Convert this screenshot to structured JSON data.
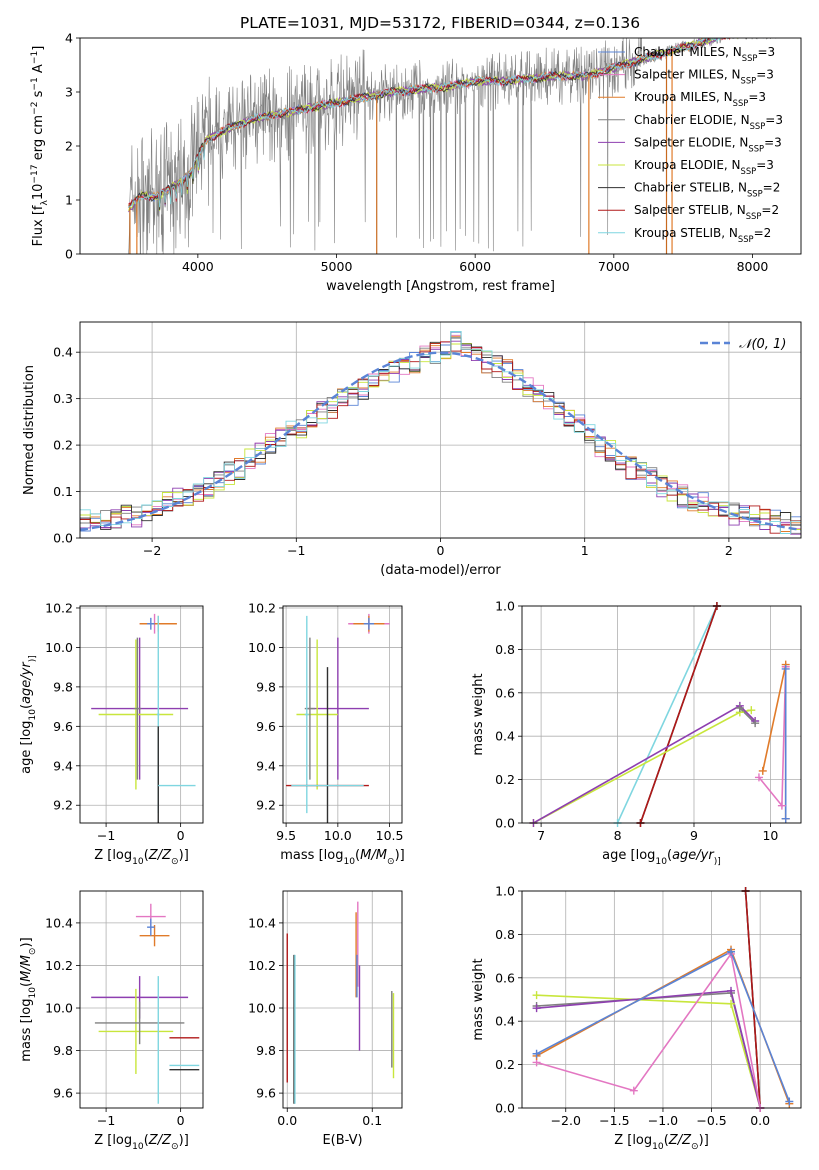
{
  "figure_title": "PLATE=1031, MJD=53172, FIBERID=0344, z=0.136",
  "model_colors": {
    "Chabrier MILES": "#5a84d6",
    "Salpeter MILES": "#e377c2",
    "Kroupa MILES": "#e07b2a",
    "Chabrier ELODIE": "#808080",
    "Salpeter ELODIE": "#8e3fb0",
    "Kroupa ELODIE": "#c8e63c",
    "Chabrier STELIB": "#303030",
    "Salpeter STELIB": "#b01818",
    "Kroupa STELIB": "#7fd6e0"
  },
  "chart_data": [
    {
      "id": "spectrum",
      "type": "line",
      "xlabel": "wavelength [Angstrom, rest frame]",
      "xlim": [
        3150,
        8350
      ],
      "ylim": [
        0,
        4
      ],
      "xticks": [
        4000,
        5000,
        6000,
        7000,
        8000
      ],
      "yticks": [
        0,
        1,
        2,
        3,
        4
      ],
      "ylabel_parts": [
        "Flux [f",
        "λ",
        "10",
        "−17",
        " erg cm",
        "−2",
        " s",
        "−1",
        " A",
        "−1",
        "]"
      ],
      "legend_position": "upper right",
      "continuum": {
        "x": [
          3500,
          3600,
          3700,
          3850,
          3950,
          4050,
          4200,
          4400,
          4600,
          4800,
          5000,
          5200,
          5400,
          5600,
          5800,
          6000,
          6200,
          6400,
          6600,
          6800,
          7000,
          7200,
          7400,
          7600,
          7800,
          8000,
          8200
        ],
        "y": [
          0.85,
          1.1,
          1.05,
          1.3,
          1.5,
          2.1,
          2.3,
          2.5,
          2.6,
          2.7,
          2.8,
          2.9,
          3.0,
          3.05,
          3.1,
          3.2,
          3.2,
          3.25,
          3.3,
          3.3,
          3.45,
          3.6,
          3.75,
          3.9,
          4.05,
          4.1,
          4.1
        ]
      },
      "observed_noisy_x_range": [
        3500,
        7200
      ],
      "drops_to_zero": [
        3510,
        3560,
        5290,
        6820,
        7380,
        7420
      ],
      "series": [
        {
          "name_parts": [
            "Chabrier MILES, N",
            "SSP",
            "=3"
          ],
          "color": "#5a84d6"
        },
        {
          "name_parts": [
            "Salpeter MILES, N",
            "SSP",
            "=3"
          ],
          "color": "#e377c2"
        },
        {
          "name_parts": [
            "Kroupa MILES, N",
            "SSP",
            "=3"
          ],
          "color": "#e07b2a"
        },
        {
          "name_parts": [
            "Chabrier ELODIE, N",
            "SSP",
            "=3"
          ],
          "color": "#808080"
        },
        {
          "name_parts": [
            "Salpeter ELODIE, N",
            "SSP",
            "=3"
          ],
          "color": "#8e3fb0"
        },
        {
          "name_parts": [
            "Kroupa ELODIE, N",
            "SSP",
            "=3"
          ],
          "color": "#c8e63c"
        },
        {
          "name_parts": [
            "Chabrier STELIB, N",
            "SSP",
            "=2"
          ],
          "color": "#303030"
        },
        {
          "name_parts": [
            "Salpeter STELIB, N",
            "SSP",
            "=2"
          ],
          "color": "#b01818"
        },
        {
          "name_parts": [
            "Kroupa STELIB, N",
            "SSP",
            "=2"
          ],
          "color": "#7fd6e0"
        }
      ]
    },
    {
      "id": "residuals",
      "type": "line",
      "xlabel": "(data-model)/error",
      "ylabel": "Normed distribution",
      "xlim": [
        -2.5,
        2.5
      ],
      "ylim": [
        0,
        0.465
      ],
      "xticks": [
        -2,
        -1,
        0,
        1,
        2
      ],
      "xticklabels": [
        "−2",
        "−1",
        "0",
        "1",
        "2"
      ],
      "yticks": [
        0,
        0.1,
        0.2,
        0.3,
        0.4
      ],
      "yticklabels": [
        "0.0",
        "0.1",
        "0.2",
        "0.3",
        "0.4"
      ],
      "grid": true,
      "gaussian": {
        "name": "𝒩(0, 1)",
        "color": "#5a84d6",
        "mean": 0,
        "sigma": 1
      },
      "histogram_bin_width": 0.1,
      "histogram_base": [
        0.04,
        0.045,
        0.042,
        0.045,
        0.05,
        0.048,
        0.055,
        0.065,
        0.075,
        0.085,
        0.09,
        0.1,
        0.11,
        0.125,
        0.14,
        0.15,
        0.17,
        0.18,
        0.2,
        0.22,
        0.23,
        0.24,
        0.25,
        0.27,
        0.28,
        0.3,
        0.31,
        0.32,
        0.33,
        0.35,
        0.36,
        0.37,
        0.38,
        0.39,
        0.4,
        0.41,
        0.42,
        0.4,
        0.39,
        0.38,
        0.37,
        0.36,
        0.34,
        0.33,
        0.31,
        0.29,
        0.27,
        0.25,
        0.24,
        0.22,
        0.2,
        0.19,
        0.17,
        0.15,
        0.14,
        0.13,
        0.11,
        0.1,
        0.09,
        0.08,
        0.075,
        0.065,
        0.058,
        0.052,
        0.048,
        0.045,
        0.04,
        0.035,
        0.032,
        0.03
      ]
    },
    {
      "id": "age-vs-Z",
      "type": "scatter",
      "xlabel_parts": [
        "Z [log",
        "10",
        "(",
        "Z/Z",
        "⊙",
        ")]"
      ],
      "ylabel_parts": [
        "age  [log",
        "10",
        "(",
        "age/yr",
        ")]"
      ],
      "xlim": [
        -1.35,
        0.3
      ],
      "ylim": [
        9.11,
        10.21
      ],
      "xticks": [
        -1,
        0
      ],
      "xticklabels": [
        "−1",
        "0"
      ],
      "yticks": [
        9.2,
        9.4,
        9.6,
        9.8,
        10.0,
        10.2
      ],
      "yticklabels": [
        "9.2",
        "9.4",
        "9.6",
        "9.8",
        "10.0",
        "10.2"
      ],
      "grid": true,
      "points": [
        {
          "x": -0.35,
          "y": 10.12,
          "xerr": 0.2,
          "yerr": 0.05,
          "color": "#e377c2"
        },
        {
          "x": -0.3,
          "y": 10.12,
          "xerr": 0.25,
          "yerr": 0.04,
          "color": "#e07b2a"
        },
        {
          "x": -0.4,
          "y": 10.12,
          "xerr": 0.05,
          "yerr": 0.03,
          "color": "#5a84d6"
        },
        {
          "x": -0.55,
          "y": 9.69,
          "xerr": 0.65,
          "yerr": 0.36,
          "color": "#8e3fb0"
        },
        {
          "x": -0.6,
          "y": 9.66,
          "xerr": 0.5,
          "yerr": 0.38,
          "color": "#c8e63c"
        },
        {
          "x": -0.58,
          "y": 9.69,
          "xerr": 0.05,
          "yerr": 0.36,
          "color": "#808080"
        },
        {
          "x": -0.3,
          "y": 9.66,
          "xerr": 0.02,
          "yerr": 0.5,
          "color": "#7fd6e0"
        },
        {
          "x": -0.3,
          "y": 9.3,
          "xerr": 0.0,
          "yerr": 0.3,
          "color": "#303030"
        },
        {
          "x": -0.05,
          "y": 9.3,
          "xerr": 0.25,
          "yerr": 0.0,
          "color": "#7fd6e0"
        }
      ]
    },
    {
      "id": "age-vs-mass",
      "type": "scatter",
      "xlabel_parts": [
        "mass [log",
        "10",
        "(",
        "M/M",
        "⊙",
        ")]"
      ],
      "xlim": [
        9.47,
        10.62
      ],
      "ylim": [
        9.11,
        10.21
      ],
      "xticks": [
        9.5,
        10.0,
        10.5
      ],
      "xticklabels": [
        "9.5",
        "10.0",
        "10.5"
      ],
      "yticks": [
        9.2,
        9.4,
        9.6,
        9.8,
        10.0,
        10.2
      ],
      "yticklabels": [
        "9.2",
        "9.4",
        "9.6",
        "9.8",
        "10.0",
        "10.2"
      ],
      "grid": true,
      "points": [
        {
          "x": 10.3,
          "y": 10.12,
          "xerr": 0.2,
          "yerr": 0.05,
          "color": "#e377c2"
        },
        {
          "x": 10.3,
          "y": 10.12,
          "xerr": 0.15,
          "yerr": 0.04,
          "color": "#e07b2a"
        },
        {
          "x": 10.3,
          "y": 10.12,
          "xerr": 0.05,
          "yerr": 0.03,
          "color": "#5a84d6"
        },
        {
          "x": 10.0,
          "y": 9.69,
          "xerr": 0.3,
          "yerr": 0.36,
          "color": "#8e3fb0"
        },
        {
          "x": 9.8,
          "y": 9.66,
          "xerr": 0.2,
          "yerr": 0.38,
          "color": "#c8e63c"
        },
        {
          "x": 9.73,
          "y": 9.69,
          "xerr": 0.05,
          "yerr": 0.36,
          "color": "#808080"
        },
        {
          "x": 9.7,
          "y": 9.66,
          "xerr": 0.02,
          "yerr": 0.5,
          "color": "#7fd6e0"
        },
        {
          "x": 9.9,
          "y": 9.3,
          "xerr": 0.4,
          "yerr": 0.0,
          "color": "#b01818"
        },
        {
          "x": 9.9,
          "y": 9.45,
          "xerr": 0.0,
          "yerr": 0.45,
          "color": "#303030"
        },
        {
          "x": 9.9,
          "y": 9.3,
          "xerr": 0.35,
          "yerr": 0.0,
          "color": "#7fd6e0"
        }
      ]
    },
    {
      "id": "weight-vs-age",
      "type": "line",
      "xlabel_parts": [
        "age  [log",
        "10",
        "(",
        "age/yr",
        ")]"
      ],
      "ylabel": "mass weight",
      "xlim": [
        6.75,
        10.4
      ],
      "ylim": [
        0,
        1
      ],
      "xticks": [
        7,
        8,
        9,
        10
      ],
      "xticklabels": [
        "7",
        "8",
        "9",
        "10"
      ],
      "yticks": [
        0,
        0.2,
        0.4,
        0.6,
        0.8,
        1.0
      ],
      "yticklabels": [
        "0.0",
        "0.2",
        "0.4",
        "0.6",
        "0.8",
        "1.0"
      ],
      "grid": true,
      "series": [
        {
          "color": "#7fd6e0",
          "x": [
            8.0,
            9.3
          ],
          "y": [
            0.0,
            1.0
          ]
        },
        {
          "color": "#303030",
          "x": [
            8.3,
            9.3
          ],
          "y": [
            0.0,
            1.0
          ]
        },
        {
          "color": "#b01818",
          "x": [
            8.3,
            9.3
          ],
          "y": [
            0.0,
            1.0
          ]
        },
        {
          "color": "#c8e63c",
          "x": [
            6.9,
            9.6,
            9.75
          ],
          "y": [
            0.0,
            0.51,
            0.52
          ]
        },
        {
          "color": "#8e3fb0",
          "x": [
            6.9,
            9.6,
            9.8
          ],
          "y": [
            0.0,
            0.54,
            0.47
          ]
        },
        {
          "color": "#808080",
          "x": [
            9.6,
            9.8
          ],
          "y": [
            0.53,
            0.46
          ]
        },
        {
          "color": "#e377c2",
          "x": [
            9.85,
            10.15,
            10.2
          ],
          "y": [
            0.21,
            0.08,
            0.72
          ]
        },
        {
          "color": "#e07b2a",
          "x": [
            9.9,
            10.2,
            10.2
          ],
          "y": [
            0.24,
            0.73,
            0.02
          ]
        },
        {
          "color": "#5a84d6",
          "x": [
            10.2,
            10.2
          ],
          "y": [
            0.02,
            0.71
          ]
        }
      ]
    },
    {
      "id": "mass-vs-Z",
      "type": "scatter",
      "xlabel_parts": [
        "Z [log",
        "10",
        "(",
        "Z/Z",
        "⊙",
        ")]"
      ],
      "ylabel_parts": [
        "mass [log",
        "10",
        "(",
        "M/M",
        "⊙",
        ")]"
      ],
      "xlim": [
        -1.35,
        0.3
      ],
      "ylim": [
        9.53,
        10.55
      ],
      "xticks": [
        -1,
        0
      ],
      "xticklabels": [
        "−1",
        "0"
      ],
      "yticks": [
        9.6,
        9.8,
        10.0,
        10.2,
        10.4
      ],
      "yticklabels": [
        "9.6",
        "9.8",
        "10.0",
        "10.2",
        "10.4"
      ],
      "grid": true,
      "points": [
        {
          "x": -0.4,
          "y": 10.43,
          "xerr": 0.2,
          "yerr": 0.06,
          "color": "#e377c2"
        },
        {
          "x": -0.35,
          "y": 10.34,
          "xerr": 0.2,
          "yerr": 0.05,
          "color": "#e07b2a"
        },
        {
          "x": -0.4,
          "y": 10.38,
          "xerr": 0.05,
          "yerr": 0.04,
          "color": "#5a84d6"
        },
        {
          "x": -0.55,
          "y": 10.05,
          "xerr": 0.65,
          "yerr": 0.1,
          "color": "#8e3fb0"
        },
        {
          "x": -0.6,
          "y": 9.89,
          "xerr": 0.5,
          "yerr": 0.2,
          "color": "#c8e63c"
        },
        {
          "x": -0.55,
          "y": 9.93,
          "xerr": 0.6,
          "yerr": 0.1,
          "color": "#808080"
        },
        {
          "x": -0.3,
          "y": 9.85,
          "xerr": 0.0,
          "yerr": 0.3,
          "color": "#7fd6e0"
        },
        {
          "x": 0.05,
          "y": 9.86,
          "xerr": 0.2,
          "yerr": 0.0,
          "color": "#b01818"
        },
        {
          "x": 0.05,
          "y": 9.71,
          "xerr": 0.2,
          "yerr": 0.0,
          "color": "#303030"
        },
        {
          "x": 0.05,
          "y": 9.73,
          "xerr": 0.2,
          "yerr": 0.0,
          "color": "#7fd6e0"
        }
      ]
    },
    {
      "id": "mass-vs-EBV",
      "type": "scatter",
      "xlabel": "E(B-V)",
      "xlim": [
        -0.005,
        0.135
      ],
      "ylim": [
        9.53,
        10.55
      ],
      "xticks": [
        0.0,
        0.1
      ],
      "xticklabels": [
        "0.0",
        "0.1"
      ],
      "yticks": [
        9.6,
        9.8,
        10.0,
        10.2,
        10.4
      ],
      "yticklabels": [
        "9.6",
        "9.8",
        "10.0",
        "10.2",
        "10.4"
      ],
      "grid": true,
      "points": [
        {
          "x": 0.083,
          "y": 10.3,
          "xerr": 0.0,
          "yerr": 0.2,
          "color": "#e377c2"
        },
        {
          "x": 0.081,
          "y": 10.25,
          "xerr": 0.0,
          "yerr": 0.2,
          "color": "#e07b2a"
        },
        {
          "x": 0.082,
          "y": 10.15,
          "xerr": 0.0,
          "yerr": 0.1,
          "color": "#5a84d6"
        },
        {
          "x": 0.085,
          "y": 10.0,
          "xerr": 0.0,
          "yerr": 0.2,
          "color": "#8e3fb0"
        },
        {
          "x": 0.125,
          "y": 9.87,
          "xerr": 0.0,
          "yerr": 0.2,
          "color": "#c8e63c"
        },
        {
          "x": 0.123,
          "y": 9.9,
          "xerr": 0.0,
          "yerr": 0.18,
          "color": "#808080"
        },
        {
          "x": 0.0,
          "y": 10.0,
          "xerr": 0.0,
          "yerr": 0.35,
          "color": "#b01818"
        },
        {
          "x": 0.008,
          "y": 9.9,
          "xerr": 0.0,
          "yerr": 0.35,
          "color": "#303030"
        },
        {
          "x": 0.009,
          "y": 9.9,
          "xerr": 0.0,
          "yerr": 0.35,
          "color": "#7fd6e0"
        }
      ]
    },
    {
      "id": "weight-vs-Z",
      "type": "line",
      "xlabel_parts": [
        "Z [log",
        "10",
        "(",
        "Z/Z",
        "⊙",
        ")]"
      ],
      "ylabel": "mass weight",
      "xlim": [
        -2.45,
        0.42
      ],
      "ylim": [
        0,
        1
      ],
      "xticks": [
        -2,
        -1.5,
        -1,
        -0.5,
        0
      ],
      "xticklabels": [
        "−2.0",
        "−1.5",
        "−1.0",
        "−0.5",
        "0.0"
      ],
      "yticks": [
        0,
        0.2,
        0.4,
        0.6,
        0.8,
        1.0
      ],
      "yticklabels": [
        "0.0",
        "0.2",
        "0.4",
        "0.6",
        "0.8",
        "1.0"
      ],
      "grid": true,
      "series": [
        {
          "color": "#7fd6e0",
          "x": [
            -0.15,
            0.0
          ],
          "y": [
            1.0,
            0.0
          ]
        },
        {
          "color": "#303030",
          "x": [
            -0.15,
            0.0
          ],
          "y": [
            1.0,
            0.0
          ]
        },
        {
          "color": "#b01818",
          "x": [
            -0.15,
            0.0
          ],
          "y": [
            1.0,
            0.0
          ]
        },
        {
          "color": "#c8e63c",
          "x": [
            -2.3,
            -0.3,
            0.0
          ],
          "y": [
            0.52,
            0.48,
            0.0
          ]
        },
        {
          "color": "#808080",
          "x": [
            -2.3,
            -0.3,
            0.0
          ],
          "y": [
            0.47,
            0.53,
            0.0
          ]
        },
        {
          "color": "#8e3fb0",
          "x": [
            -2.3,
            -0.3,
            0.0
          ],
          "y": [
            0.46,
            0.54,
            0.0
          ]
        },
        {
          "color": "#e377c2",
          "x": [
            -2.3,
            -1.3,
            -0.3,
            0.0
          ],
          "y": [
            0.21,
            0.08,
            0.71,
            0.0
          ]
        },
        {
          "color": "#e07b2a",
          "x": [
            -2.3,
            -0.3,
            0.3
          ],
          "y": [
            0.24,
            0.73,
            0.02
          ]
        },
        {
          "color": "#5a84d6",
          "x": [
            -2.3,
            -0.3,
            0.3
          ],
          "y": [
            0.25,
            0.72,
            0.03
          ]
        }
      ]
    }
  ]
}
